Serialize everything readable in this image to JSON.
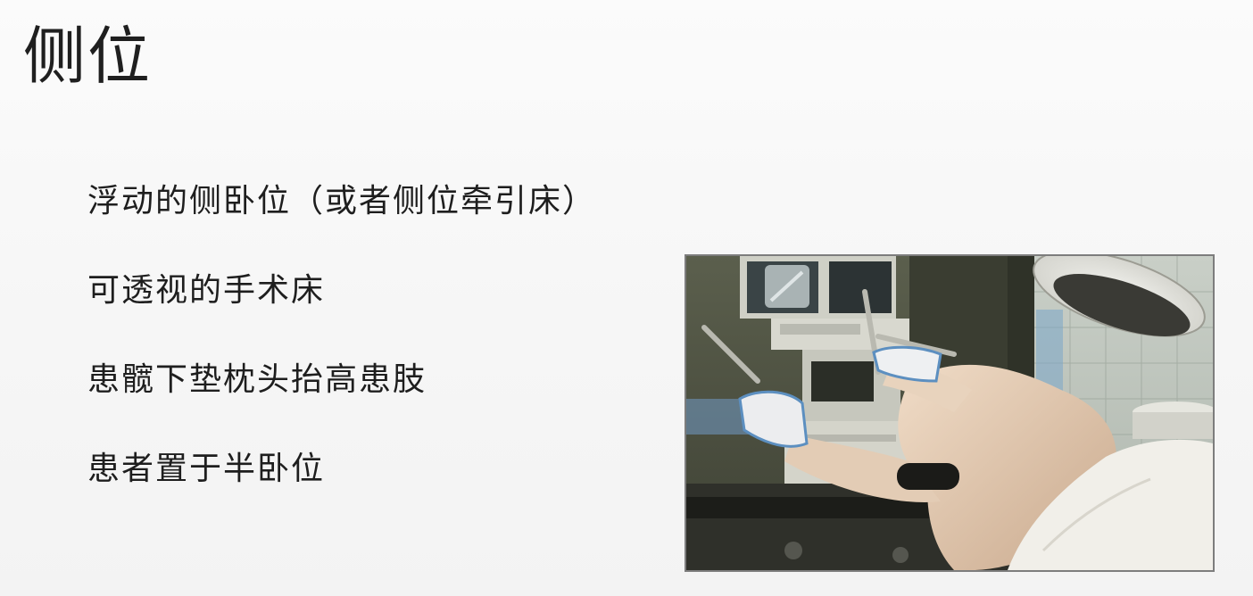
{
  "slide": {
    "title": "侧位",
    "bullets": [
      "浮动的侧卧位（或者侧位牵引床）",
      "可透视的手术床",
      "患髋下垫枕头抬高患肢",
      "患者置于半卧位"
    ]
  },
  "image": {
    "subject": "lateral-position-fluoroscopy-setup-photo"
  }
}
